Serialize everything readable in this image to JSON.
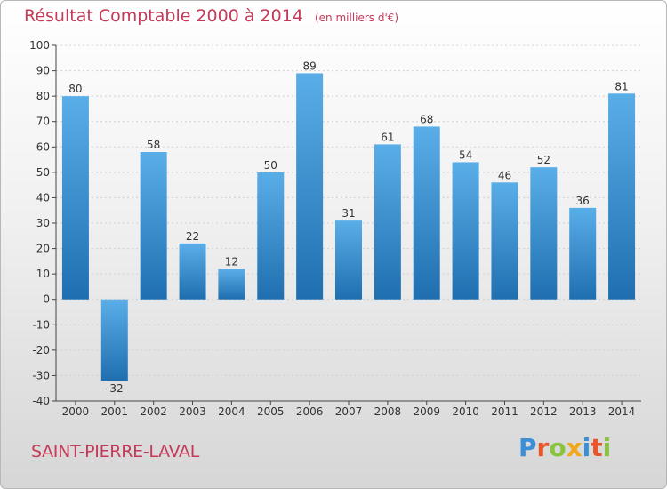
{
  "header": {
    "title": "Résultat Comptable 2000 à 2014",
    "subtitle": "(en milliers d'€)"
  },
  "footer": {
    "commune": "SAINT-PIERRE-LAVAL",
    "logo_text": "Proxiti",
    "logo_letters": [
      {
        "char": "P",
        "color": "#3a8fd6"
      },
      {
        "char": "r",
        "color": "#e8552a"
      },
      {
        "char": "o",
        "color": "#8ac43f"
      },
      {
        "char": "x",
        "color": "#f2a81d"
      },
      {
        "char": "i",
        "color": "#3a8fd6"
      },
      {
        "char": "t",
        "color": "#e8552a"
      },
      {
        "char": "i",
        "color": "#8ac43f"
      }
    ]
  },
  "colors": {
    "bar_top": "#5aaee8",
    "bar_bottom": "#1f6fb0",
    "title": "#c63a58",
    "axis": "#444444",
    "grid": "#d0d0d0"
  },
  "chart_data": {
    "type": "bar",
    "title": "Résultat Comptable 2000 à 2014",
    "subtitle": "(en milliers d'€)",
    "xlabel": "",
    "ylabel": "",
    "categories": [
      "2000",
      "2001",
      "2002",
      "2003",
      "2004",
      "2005",
      "2006",
      "2007",
      "2008",
      "2009",
      "2010",
      "2011",
      "2012",
      "2013",
      "2014"
    ],
    "values": [
      80,
      -32,
      58,
      22,
      12,
      50,
      89,
      31,
      61,
      68,
      54,
      46,
      52,
      36,
      81
    ],
    "ylim": [
      -40,
      100
    ],
    "yticks": [
      -40,
      -30,
      -20,
      -10,
      0,
      10,
      20,
      30,
      40,
      50,
      60,
      70,
      80,
      90,
      100
    ],
    "grid": true
  }
}
